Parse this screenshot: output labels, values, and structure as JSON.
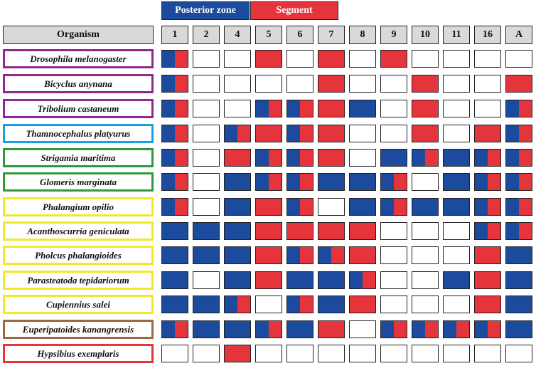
{
  "colors": {
    "posterior": "#1c4a9c",
    "segment": "#e5343c",
    "empty": "#ffffff",
    "header_bg": "#d9d9d9"
  },
  "legend": {
    "posterior_label": "Posterior zone",
    "segment_label": "Segment"
  },
  "header": {
    "organism_label": "Organism",
    "columns": [
      "1",
      "2",
      "4",
      "5",
      "6",
      "7",
      "8",
      "9",
      "10",
      "11",
      "16",
      "A"
    ]
  },
  "rows": [
    {
      "name": "Drosophila melanogaster",
      "border": "#8e2a8e",
      "cells": [
        "PS",
        "E",
        "E",
        "S",
        "E",
        "S",
        "E",
        "S",
        "E",
        "E",
        "E",
        "E"
      ]
    },
    {
      "name": "Bicyclus anynana",
      "border": "#8e2a8e",
      "cells": [
        "PS",
        "E",
        "E",
        "E",
        "E",
        "S",
        "E",
        "E",
        "S",
        "E",
        "E",
        "S"
      ]
    },
    {
      "name": "Tribolium castaneum",
      "border": "#8e2a8e",
      "cells": [
        "PS",
        "E",
        "E",
        "PS",
        "PS",
        "S",
        "P",
        "E",
        "S",
        "E",
        "E",
        "PS"
      ]
    },
    {
      "name": "Thamnocephalus platyurus",
      "border": "#1aa0e0",
      "cells": [
        "PS",
        "E",
        "PS",
        "S",
        "PS",
        "S",
        "E",
        "E",
        "S",
        "E",
        "S",
        "PS"
      ]
    },
    {
      "name": "Strigamia maritima",
      "border": "#2e9a3e",
      "cells": [
        "PS",
        "E",
        "S",
        "PS",
        "PS",
        "S",
        "E",
        "P",
        "PS",
        "P",
        "PS",
        "PS"
      ]
    },
    {
      "name": "Glomeris marginata",
      "border": "#2e9a3e",
      "cells": [
        "PS",
        "E",
        "P",
        "PS",
        "PS",
        "P",
        "P",
        "PS",
        "E",
        "P",
        "PS",
        "PS"
      ]
    },
    {
      "name": "Phalangium opilio",
      "border": "#f2e82a",
      "cells": [
        "PS",
        "E",
        "P",
        "S",
        "PS",
        "E",
        "P",
        "PS",
        "P",
        "P",
        "PS",
        "PS"
      ]
    },
    {
      "name": "Acanthoscurria geniculata",
      "border": "#f2e82a",
      "cells": [
        "P",
        "P",
        "P",
        "S",
        "S",
        "S",
        "S",
        "E",
        "E",
        "E",
        "PS",
        "PS"
      ]
    },
    {
      "name": "Pholcus phalangioides",
      "border": "#f2e82a",
      "cells": [
        "P",
        "P",
        "P",
        "S",
        "PS",
        "PS",
        "S",
        "E",
        "E",
        "E",
        "S",
        "P"
      ]
    },
    {
      "name": "Parasteatoda tepidariorum",
      "border": "#f2e82a",
      "cells": [
        "P",
        "E",
        "P",
        "S",
        "P",
        "P",
        "PS",
        "E",
        "E",
        "P",
        "S",
        "P"
      ]
    },
    {
      "name": "Cupiennius salei",
      "border": "#f2e82a",
      "cells": [
        "P",
        "P",
        "PS",
        "E",
        "PS",
        "P",
        "S",
        "E",
        "E",
        "E",
        "S",
        "P"
      ]
    },
    {
      "name": "Euperipatoides kanangrensis",
      "border": "#9a6a44",
      "cells": [
        "PS",
        "P",
        "P",
        "PS",
        "P",
        "S",
        "E",
        "PS",
        "PS",
        "PS",
        "PS",
        "P"
      ]
    },
    {
      "name": "Hypsibius exemplaris",
      "border": "#e5343c",
      "cells": [
        "E",
        "E",
        "S",
        "E",
        "E",
        "E",
        "E",
        "E",
        "E",
        "E",
        "E",
        "E"
      ]
    }
  ]
}
